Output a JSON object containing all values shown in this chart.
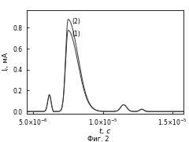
{
  "ylabel": "I$_i$, мА",
  "xlabel": "t, с",
  "caption": "Фиг. 2",
  "xlim": [
    4.5e-06,
    1.58e-05
  ],
  "ylim": [
    -0.02,
    0.97
  ],
  "yticks": [
    0.0,
    0.2,
    0.4,
    0.6,
    0.8
  ],
  "xticks": [
    5e-06,
    1e-05,
    1.5e-05
  ],
  "label1": "(1)",
  "label2": "(2)",
  "line_color": "#333333",
  "bg_color": "#ffffff",
  "plot_bg": "#ffffff"
}
